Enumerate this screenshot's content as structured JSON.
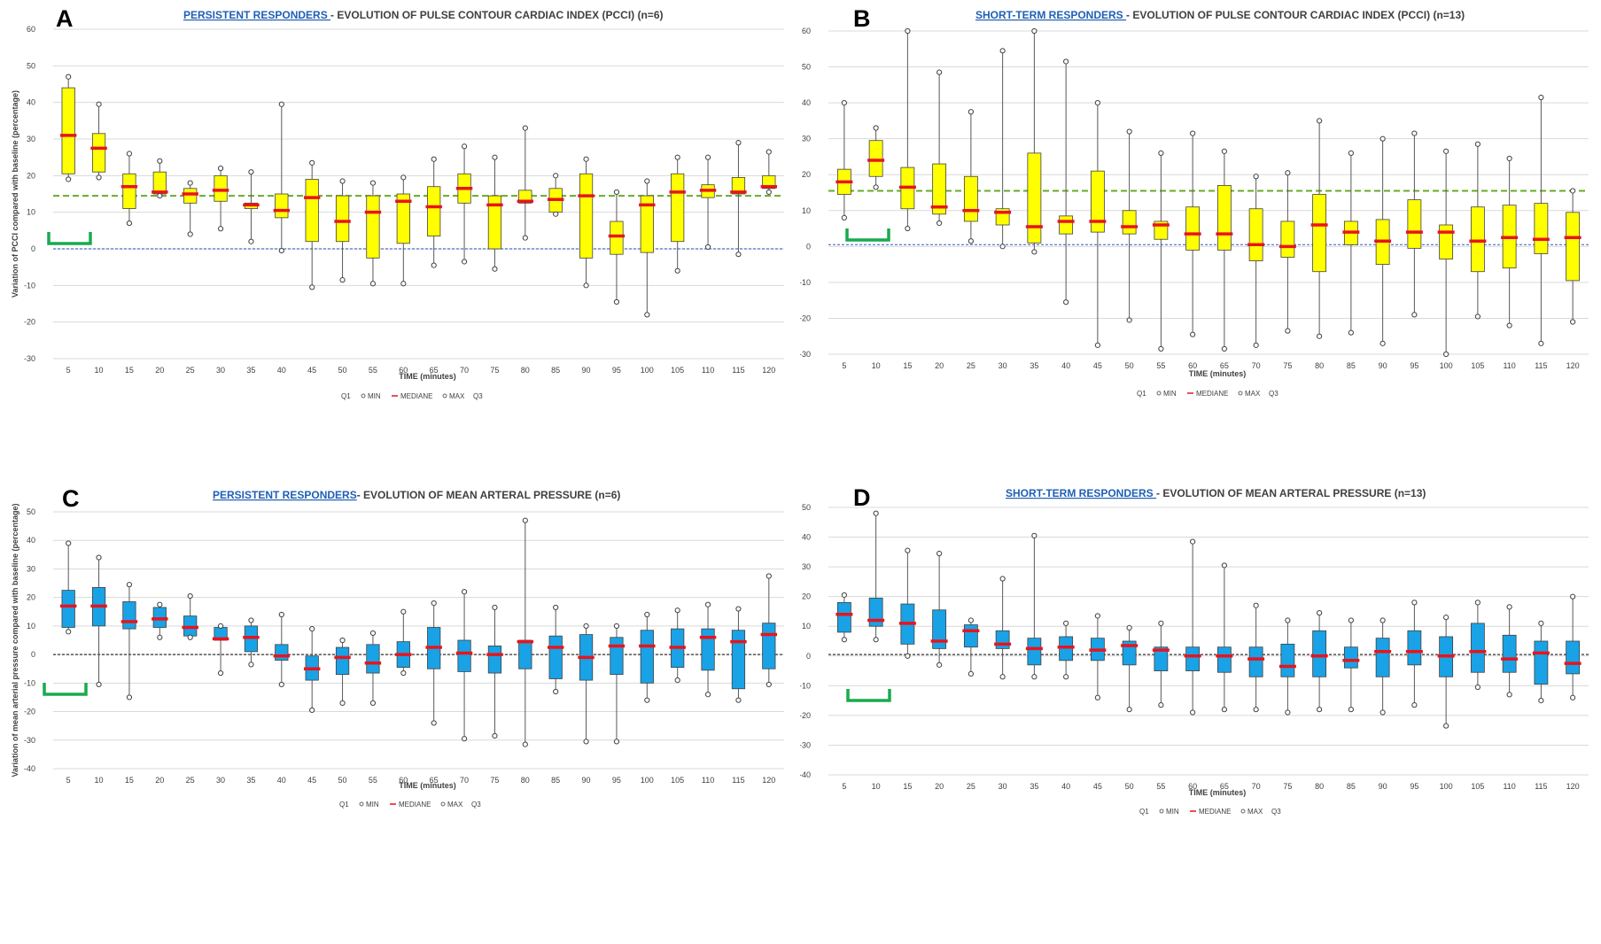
{
  "legend": [
    "Q1",
    "MIN",
    "MEDIANE",
    "MAX",
    "Q3"
  ],
  "colors": {
    "yellow_box": "#ffff00",
    "blue_box": "#1aa2e6",
    "median": "#e8141c",
    "green_ref": "#6aaa2a",
    "blue_ref": "#4a6fc4",
    "fe_bracket": "#1aaa4f"
  },
  "chart_data": [
    {
      "panel": "A",
      "type": "box",
      "title_link": "PERSISTENT RESPONDERS ",
      "title_rest": "- EVOLUTION OF PULSE CONTOUR CARDIAC INDEX (PCCI) (n=6)",
      "xlabel": "TIME (minutes)",
      "ylabel": "Variation of PCCI compared with baseline (percentage)",
      "ylim": [
        -30,
        60
      ],
      "yticks": [
        -30,
        -20,
        -10,
        0,
        10,
        20,
        30,
        40,
        50,
        60
      ],
      "categories": [
        "5",
        "10",
        "15",
        "20",
        "25",
        "30",
        "35",
        "40",
        "45",
        "50",
        "55",
        "60",
        "65",
        "70",
        "75",
        "80",
        "85",
        "90",
        "95",
        "100",
        "105",
        "110",
        "115",
        "120"
      ],
      "min": [
        19,
        19.5,
        7,
        14.5,
        4,
        5.5,
        2,
        -0.5,
        -10.5,
        -8.5,
        -9.5,
        -9.5,
        -4.5,
        -3.5,
        -5.5,
        3,
        9.5,
        -10,
        -14.5,
        -18,
        -6,
        0.5,
        -1.5,
        15.5
      ],
      "q1": [
        20.5,
        21,
        11,
        15,
        12.5,
        13,
        11,
        8.5,
        2,
        2,
        -2.5,
        1.5,
        3.5,
        12.5,
        0,
        12.5,
        10,
        -2.5,
        -1.5,
        -1,
        2,
        14,
        15,
        16.5
      ],
      "median": [
        31,
        27.5,
        17,
        15.5,
        15,
        16,
        12,
        10.5,
        14,
        7.5,
        10,
        13,
        11.5,
        16.5,
        12,
        13,
        13.5,
        14.5,
        3.5,
        12,
        15.5,
        16,
        15.5,
        17
      ],
      "q3": [
        44,
        31.5,
        20.5,
        21,
        16.5,
        20,
        12.5,
        15,
        19,
        14.5,
        14.5,
        15,
        17,
        20.5,
        14.5,
        16,
        16.5,
        20.5,
        7.5,
        14.5,
        20.5,
        17.5,
        19.5,
        20
      ],
      "max": [
        47,
        39.5,
        26,
        24,
        18,
        22,
        21,
        39.5,
        23.5,
        18.5,
        18,
        19.5,
        24.5,
        28,
        25,
        33,
        20,
        24.5,
        15.5,
        18.5,
        25,
        25,
        29,
        26.5
      ],
      "ref_green": 14.5,
      "ref_blue": 0
    },
    {
      "panel": "B",
      "type": "box",
      "title_link": "SHORT-TERM RESPONDERS ",
      "title_rest": "- EVOLUTION OF PULSE CONTOUR CARDIAC INDEX (PCCI) (n=13)",
      "xlabel": "TIME (minutes)",
      "ylabel": "Variation of PCCI compared with baseline (percentage)",
      "ylim": [
        -30,
        60
      ],
      "yticks": [
        -30,
        -20,
        -10,
        0,
        10,
        20,
        30,
        40,
        50,
        60
      ],
      "categories": [
        "5",
        "10",
        "15",
        "20",
        "25",
        "30",
        "35",
        "40",
        "45",
        "50",
        "55",
        "60",
        "65",
        "70",
        "75",
        "80",
        "85",
        "90",
        "95",
        "100",
        "105",
        "110",
        "115",
        "120"
      ],
      "min": [
        8,
        16.5,
        5,
        6.5,
        1.5,
        0,
        -1.5,
        -15.5,
        -27.5,
        -20.5,
        -28.5,
        -24.5,
        -28.5,
        -27.5,
        -23.5,
        -25,
        -24,
        -27,
        -19,
        -30,
        -19.5,
        -22,
        -27,
        -21
      ],
      "q1": [
        14.5,
        19.5,
        10.5,
        9,
        7,
        6,
        1,
        3.5,
        4,
        3.5,
        2,
        -1,
        -1,
        -4,
        -3,
        -7,
        0.5,
        -5,
        -0.5,
        -3.5,
        -7,
        -6,
        -2,
        -9.5
      ],
      "median": [
        18,
        24,
        16.5,
        11,
        10,
        9.5,
        5.5,
        7,
        7,
        5.5,
        6,
        3.5,
        3.5,
        0.5,
        0,
        6,
        4,
        1.5,
        4,
        4,
        1.5,
        2.5,
        2,
        2.5
      ],
      "q3": [
        21.5,
        29.5,
        22,
        23,
        19.5,
        10.5,
        26,
        8.5,
        21,
        10,
        7,
        11,
        17,
        10.5,
        7,
        14.5,
        7,
        7.5,
        13,
        6,
        11,
        11.5,
        12,
        9.5
      ],
      "max": [
        40,
        33,
        60,
        48.5,
        37.5,
        54.5,
        60,
        51.5,
        40,
        32,
        26,
        31.5,
        26.5,
        19.5,
        20.5,
        35,
        26,
        30,
        31.5,
        26.5,
        28.5,
        24.5,
        41.5,
        15.5
      ],
      "ref_green": 15.5,
      "ref_blue": 0.5
    },
    {
      "panel": "C",
      "type": "box",
      "title_link": "PERSISTENT RESPONDERS",
      "title_rest": "- EVOLUTION OF MEAN ARTERAL PRESSURE (n=6)",
      "xlabel": "TIME (minutes)",
      "ylabel": "Variation of mean arterial pressure compared with baseline (percentage)",
      "ylim": [
        -40,
        50
      ],
      "yticks": [
        -40,
        -30,
        -20,
        -10,
        0,
        10,
        20,
        30,
        40,
        50
      ],
      "categories": [
        "5",
        "10",
        "15",
        "20",
        "25",
        "30",
        "35",
        "40",
        "45",
        "50",
        "55",
        "60",
        "65",
        "70",
        "75",
        "80",
        "85",
        "90",
        "95",
        "100",
        "105",
        "110",
        "115",
        "120"
      ],
      "min": [
        8,
        -10.5,
        -15,
        6,
        6,
        -6.5,
        -3.5,
        -10.5,
        -19.5,
        -17,
        -17,
        -6.5,
        -24,
        -29.5,
        -28.5,
        -31.5,
        -13,
        -30.5,
        -30.5,
        -16,
        -9,
        -14,
        -16,
        -10.5
      ],
      "q1": [
        9.5,
        10,
        9,
        9.5,
        6.5,
        5,
        1,
        -2,
        -9,
        -7,
        -6.5,
        -4.5,
        -5,
        -6,
        -6.5,
        -5,
        -8.5,
        -9,
        -7,
        -10,
        -4.5,
        -5.5,
        -12,
        -5
      ],
      "median": [
        17,
        17,
        11.5,
        12.5,
        9.5,
        5.5,
        6,
        -0.5,
        -5,
        -1,
        -3,
        0,
        2.5,
        0.5,
        0,
        4.5,
        2.5,
        -1,
        3,
        3,
        2.5,
        6,
        4.5,
        7
      ],
      "q3": [
        22.5,
        23.5,
        18.5,
        16.5,
        13.5,
        9.5,
        10,
        3.5,
        -0.5,
        2.5,
        3.5,
        4.5,
        9.5,
        5,
        3,
        5,
        6.5,
        7,
        6,
        8.5,
        9,
        9,
        8.5,
        11
      ],
      "max": [
        39,
        34,
        24.5,
        17.5,
        20.5,
        10,
        12,
        14,
        9,
        5,
        7.5,
        15,
        18,
        22,
        16.5,
        47,
        16.5,
        10,
        10,
        14,
        15.5,
        17.5,
        16,
        27.5
      ],
      "ref_black": 0
    },
    {
      "panel": "D",
      "type": "box",
      "title_link": "SHORT-TERM RESPONDERS ",
      "title_rest": "- EVOLUTION OF MEAN ARTERAL PRESSURE (n=13)",
      "xlabel": "TIME (minutes)",
      "ylabel": "Variation of mean arterial pressure compared with baseline (percentage)",
      "ylim": [
        -40,
        50
      ],
      "yticks": [
        -40,
        -30,
        -20,
        -10,
        0,
        10,
        20,
        30,
        40,
        50
      ],
      "categories": [
        "5",
        "10",
        "15",
        "20",
        "25",
        "30",
        "35",
        "40",
        "45",
        "50",
        "55",
        "60",
        "65",
        "70",
        "75",
        "80",
        "85",
        "90",
        "95",
        "100",
        "105",
        "110",
        "115",
        "120"
      ],
      "min": [
        5.5,
        5.5,
        0,
        -3,
        -6,
        -7,
        -7,
        -7,
        -14,
        -18,
        -16.5,
        -19,
        -18,
        -18,
        -19,
        -18,
        -18,
        -19,
        -16.5,
        -23.5,
        -10.5,
        -13,
        -15,
        -14
      ],
      "q1": [
        8,
        10,
        4,
        2.5,
        3,
        2.5,
        -3,
        -1.5,
        -1.5,
        -3,
        -5,
        -5,
        -5.5,
        -7,
        -7,
        -7,
        -4,
        -7,
        -3,
        -7,
        -5.5,
        -5.5,
        -9.5,
        -6
      ],
      "median": [
        14,
        12,
        11,
        5,
        8.5,
        4,
        2.5,
        3,
        2,
        3.5,
        2,
        0,
        0,
        -1,
        -3.5,
        0,
        -1.5,
        1.5,
        1.5,
        0,
        1.5,
        -1,
        1,
        -2.5
      ],
      "q3": [
        18,
        19.5,
        17.5,
        15.5,
        10.5,
        8.5,
        6,
        6.5,
        6,
        5,
        3,
        3,
        3,
        3,
        4,
        8.5,
        3,
        6,
        8.5,
        6.5,
        11,
        7,
        5,
        5
      ],
      "max": [
        20.5,
        48,
        35.5,
        34.5,
        12,
        26,
        40.5,
        11,
        13.5,
        9.5,
        11,
        38.5,
        30.5,
        17,
        12,
        14.5,
        12,
        12,
        18,
        13,
        18,
        16.5,
        11,
        20
      ],
      "ref_black": 0.5
    }
  ]
}
